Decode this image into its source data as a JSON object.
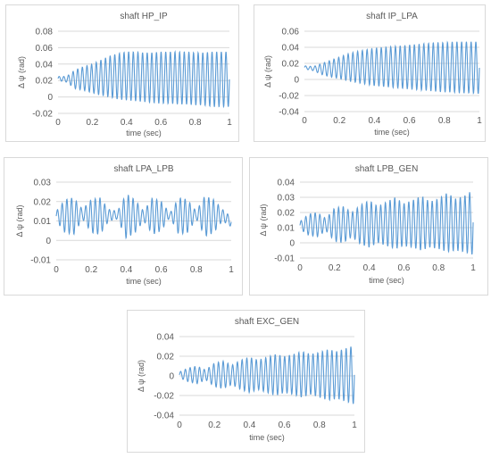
{
  "chart_data": [
    {
      "type": "line",
      "title": "shaft HP_IP",
      "xlabel": "time (sec)",
      "ylabel": "Δ ψ (rad)",
      "xlim": [
        0,
        1
      ],
      "ylim": [
        -0.02,
        0.08
      ],
      "xticks": [
        "0",
        "0.2",
        "0.4",
        "0.6",
        "0.8",
        "1"
      ],
      "yticks": [
        "-0.02",
        "0",
        "0.02",
        "0.04",
        "0.06",
        "0.08"
      ],
      "grid": true,
      "color": "#5b9bd5",
      "series": [
        {
          "x": [
            0,
            0.05,
            0.1,
            0.15,
            0.2,
            0.25,
            0.3,
            0.35,
            0.4,
            0.45,
            0.5,
            0.55,
            0.6,
            0.65,
            0.7,
            0.75,
            0.8,
            0.85,
            0.9,
            0.95,
            1.0
          ],
          "upper": [
            0.025,
            0.025,
            0.033,
            0.037,
            0.04,
            0.045,
            0.05,
            0.053,
            0.055,
            0.055,
            0.054,
            0.054,
            0.055,
            0.055,
            0.055,
            0.055,
            0.054,
            0.054,
            0.055,
            0.055,
            0.055
          ],
          "lower": [
            0.02,
            0.018,
            0.01,
            0.008,
            0.005,
            0.002,
            0.0,
            -0.003,
            -0.004,
            -0.005,
            -0.006,
            -0.007,
            -0.008,
            -0.008,
            -0.009,
            -0.009,
            -0.01,
            -0.01,
            -0.012,
            -0.012,
            -0.012
          ]
        }
      ]
    },
    {
      "type": "line",
      "title": "shaft IP_LPA",
      "xlabel": "time (sec)",
      "ylabel": "Δ ψ (rad)",
      "xlim": [
        0,
        1
      ],
      "ylim": [
        -0.04,
        0.06
      ],
      "xticks": [
        "0",
        "0.2",
        "0.4",
        "0.6",
        "0.8",
        "1"
      ],
      "yticks": [
        "-0.04",
        "-0.02",
        "0",
        "0.02",
        "0.04",
        "0.06"
      ],
      "grid": true,
      "color": "#5b9bd5",
      "series": [
        {
          "x": [
            0,
            0.05,
            0.1,
            0.15,
            0.2,
            0.25,
            0.3,
            0.35,
            0.4,
            0.45,
            0.5,
            0.55,
            0.6,
            0.65,
            0.7,
            0.75,
            0.8,
            0.85,
            0.9,
            0.95,
            1.0
          ],
          "upper": [
            0.017,
            0.016,
            0.02,
            0.024,
            0.028,
            0.032,
            0.035,
            0.037,
            0.039,
            0.04,
            0.041,
            0.042,
            0.043,
            0.044,
            0.045,
            0.046,
            0.046,
            0.047,
            0.047,
            0.047,
            0.047
          ],
          "lower": [
            0.013,
            0.011,
            0.006,
            0.003,
            0.001,
            -0.002,
            -0.004,
            -0.006,
            -0.008,
            -0.009,
            -0.01,
            -0.011,
            -0.012,
            -0.013,
            -0.014,
            -0.015,
            -0.016,
            -0.016,
            -0.017,
            -0.017,
            -0.018
          ]
        }
      ]
    },
    {
      "type": "line",
      "title": "shaft LPA_LPB",
      "xlabel": "time (sec)",
      "ylabel": "Δ ψ (rad)",
      "xlim": [
        0,
        1
      ],
      "ylim": [
        -0.01,
        0.03
      ],
      "xticks": [
        "0",
        "0.2",
        "0.4",
        "0.6",
        "0.8",
        "1"
      ],
      "yticks": [
        "-0.01",
        "0",
        "0.01",
        "0.02",
        "0.03"
      ],
      "grid": true,
      "color": "#5b9bd5",
      "series": [
        {
          "x": [
            0,
            0.05,
            0.1,
            0.15,
            0.2,
            0.25,
            0.3,
            0.35,
            0.4,
            0.45,
            0.5,
            0.55,
            0.6,
            0.65,
            0.7,
            0.75,
            0.8,
            0.85,
            0.9,
            0.95,
            1.0
          ],
          "upper": [
            0.015,
            0.021,
            0.022,
            0.016,
            0.021,
            0.022,
            0.016,
            0.015,
            0.024,
            0.021,
            0.015,
            0.022,
            0.02,
            0.014,
            0.022,
            0.021,
            0.015,
            0.023,
            0.021,
            0.016,
            0.012
          ],
          "lower": [
            0.01,
            0.004,
            0.003,
            0.011,
            0.004,
            0.003,
            0.01,
            0.011,
            0.001,
            0.004,
            0.01,
            0.003,
            0.005,
            0.012,
            0.003,
            0.004,
            0.011,
            0.002,
            0.004,
            0.01,
            0.007
          ]
        }
      ]
    },
    {
      "type": "line",
      "title": "shaft LPB_GEN",
      "xlabel": "time (sec)",
      "ylabel": "Δ ψ (rad)",
      "xlim": [
        0,
        1
      ],
      "ylim": [
        -0.01,
        0.04
      ],
      "xticks": [
        "0",
        "0.2",
        "0.4",
        "0.6",
        "0.8",
        "1"
      ],
      "yticks": [
        "-0.01",
        "0",
        "0.01",
        "0.02",
        "0.03",
        "0.04"
      ],
      "grid": true,
      "color": "#5b9bd5",
      "series": [
        {
          "x": [
            0,
            0.05,
            0.1,
            0.15,
            0.2,
            0.25,
            0.3,
            0.35,
            0.4,
            0.45,
            0.5,
            0.55,
            0.6,
            0.65,
            0.7,
            0.75,
            0.8,
            0.85,
            0.9,
            0.95,
            1.0
          ],
          "upper": [
            0.014,
            0.019,
            0.02,
            0.016,
            0.023,
            0.024,
            0.02,
            0.025,
            0.028,
            0.024,
            0.027,
            0.03,
            0.026,
            0.028,
            0.031,
            0.027,
            0.029,
            0.033,
            0.029,
            0.031,
            0.035
          ],
          "lower": [
            0.009,
            0.005,
            0.004,
            0.008,
            0.001,
            0.0,
            0.004,
            -0.001,
            -0.003,
            0.0,
            -0.002,
            -0.004,
            -0.002,
            -0.003,
            -0.005,
            -0.003,
            -0.004,
            -0.006,
            -0.005,
            -0.006,
            -0.008
          ]
        }
      ]
    },
    {
      "type": "line",
      "title": "shaft EXC_GEN",
      "xlabel": "time (sec)",
      "ylabel": "Δ ψ (rad)",
      "xlim": [
        0,
        1
      ],
      "ylim": [
        -0.04,
        0.04
      ],
      "xticks": [
        "0",
        "0.2",
        "0.4",
        "0.6",
        "0.8",
        "1"
      ],
      "yticks": [
        "-0.04",
        "-0.02",
        "0",
        "0.02",
        "0.04"
      ],
      "grid": true,
      "color": "#5b9bd5",
      "series": [
        {
          "x": [
            0,
            0.05,
            0.1,
            0.15,
            0.2,
            0.25,
            0.3,
            0.35,
            0.4,
            0.45,
            0.5,
            0.55,
            0.6,
            0.65,
            0.7,
            0.75,
            0.8,
            0.85,
            0.9,
            0.95,
            1.0
          ],
          "upper": [
            0.004,
            0.008,
            0.01,
            0.006,
            0.013,
            0.015,
            0.011,
            0.016,
            0.019,
            0.016,
            0.019,
            0.022,
            0.02,
            0.022,
            0.025,
            0.022,
            0.024,
            0.027,
            0.025,
            0.028,
            0.031
          ],
          "lower": [
            -0.002,
            -0.006,
            -0.008,
            -0.004,
            -0.011,
            -0.013,
            -0.009,
            -0.014,
            -0.017,
            -0.014,
            -0.017,
            -0.02,
            -0.017,
            -0.019,
            -0.022,
            -0.019,
            -0.022,
            -0.025,
            -0.023,
            -0.026,
            -0.029
          ]
        }
      ]
    }
  ]
}
